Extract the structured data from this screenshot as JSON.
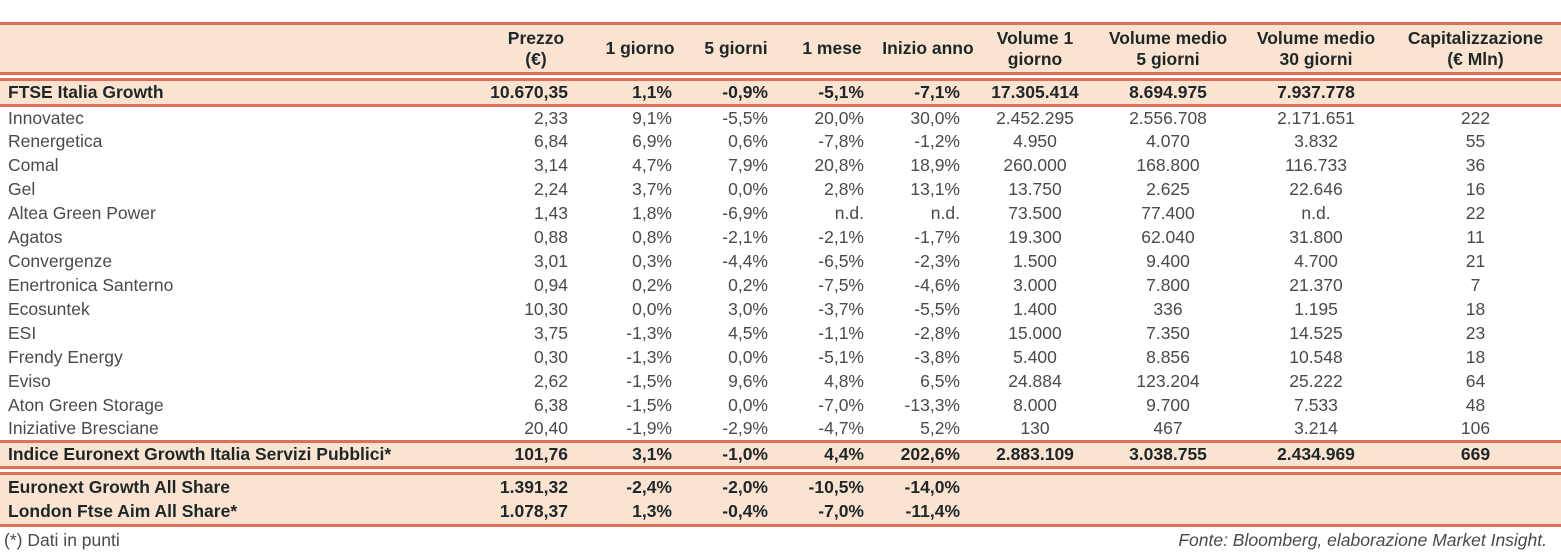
{
  "colors": {
    "band_background": "#fbe3d2",
    "rule_line": "#df7058",
    "band_text": "#1e2726",
    "body_text": "#4a4a49"
  },
  "table": {
    "columns": [
      {
        "key": "name",
        "label": "",
        "sub": ""
      },
      {
        "key": "prezzo",
        "label": "Prezzo",
        "sub": "(€)"
      },
      {
        "key": "giorno-1",
        "label": "1 giorno",
        "sub": ""
      },
      {
        "key": "giorni-5",
        "label": "5 giorni",
        "sub": ""
      },
      {
        "key": "mese-1",
        "label": "1 mese",
        "sub": ""
      },
      {
        "key": "inizio-anno",
        "label": "Inizio anno",
        "sub": ""
      },
      {
        "key": "volume-1-giorno",
        "label": "Volume 1",
        "sub": "giorno"
      },
      {
        "key": "volume-medio-5-giorni",
        "label": "Volume medio",
        "sub": "5 giorni"
      },
      {
        "key": "volume-medio-30-giorni",
        "label": "Volume medio",
        "sub": "30 giorni"
      },
      {
        "key": "capitalizzazione",
        "label": "Capitalizzazione",
        "sub": "(€ Mln)"
      }
    ],
    "rows": [
      {
        "style": "band",
        "name": "index-row-ftse-italia-growth",
        "cells": [
          "FTSE Italia Growth",
          "10.670,35",
          "1,1%",
          "-0,9%",
          "-5,1%",
          "-7,1%",
          "17.305.414",
          "8.694.975",
          "7.937.778",
          ""
        ]
      },
      {
        "style": "plain",
        "name": "stock-row-innovatec",
        "cells": [
          "Innovatec",
          "2,33",
          "9,1%",
          "-5,5%",
          "20,0%",
          "30,0%",
          "2.452.295",
          "2.556.708",
          "2.171.651",
          "222"
        ]
      },
      {
        "style": "plain",
        "name": "stock-row-renergetica",
        "cells": [
          "Renergetica",
          "6,84",
          "6,9%",
          "0,6%",
          "-7,8%",
          "-1,2%",
          "4.950",
          "4.070",
          "3.832",
          "55"
        ]
      },
      {
        "style": "plain",
        "name": "stock-row-comal",
        "cells": [
          "Comal",
          "3,14",
          "4,7%",
          "7,9%",
          "20,8%",
          "18,9%",
          "260.000",
          "168.800",
          "116.733",
          "36"
        ]
      },
      {
        "style": "plain",
        "name": "stock-row-gel",
        "cells": [
          "Gel",
          "2,24",
          "3,7%",
          "0,0%",
          "2,8%",
          "13,1%",
          "13.750",
          "2.625",
          "22.646",
          "16"
        ]
      },
      {
        "style": "plain",
        "name": "stock-row-altea-green-power",
        "cells": [
          "Altea Green Power",
          "1,43",
          "1,8%",
          "-6,9%",
          "n.d.",
          "n.d.",
          "73.500",
          "77.400",
          "n.d.",
          "22"
        ]
      },
      {
        "style": "plain",
        "name": "stock-row-agatos",
        "cells": [
          "Agatos",
          "0,88",
          "0,8%",
          "-2,1%",
          "-2,1%",
          "-1,7%",
          "19.300",
          "62.040",
          "31.800",
          "11"
        ]
      },
      {
        "style": "plain",
        "name": "stock-row-convergenze",
        "cells": [
          "Convergenze",
          "3,01",
          "0,3%",
          "-4,4%",
          "-6,5%",
          "-2,3%",
          "1.500",
          "9.400",
          "4.700",
          "21"
        ]
      },
      {
        "style": "plain",
        "name": "stock-row-enertronica-santerno",
        "cells": [
          "Enertronica Santerno",
          "0,94",
          "0,2%",
          "0,2%",
          "-7,5%",
          "-4,6%",
          "3.000",
          "7.800",
          "21.370",
          "7"
        ]
      },
      {
        "style": "plain",
        "name": "stock-row-ecosuntek",
        "cells": [
          "Ecosuntek",
          "10,30",
          "0,0%",
          "3,0%",
          "-3,7%",
          "-5,5%",
          "1.400",
          "336",
          "1.195",
          "18"
        ]
      },
      {
        "style": "plain",
        "name": "stock-row-esi",
        "cells": [
          "ESI",
          "3,75",
          "-1,3%",
          "4,5%",
          "-1,1%",
          "-2,8%",
          "15.000",
          "7.350",
          "14.525",
          "23"
        ]
      },
      {
        "style": "plain",
        "name": "stock-row-frendy-energy",
        "cells": [
          "Frendy Energy",
          "0,30",
          "-1,3%",
          "0,0%",
          "-5,1%",
          "-3,8%",
          "5.400",
          "8.856",
          "10.548",
          "18"
        ]
      },
      {
        "style": "plain",
        "name": "stock-row-eviso",
        "cells": [
          "Eviso",
          "2,62",
          "-1,5%",
          "9,6%",
          "4,8%",
          "6,5%",
          "24.884",
          "123.204",
          "25.222",
          "64"
        ]
      },
      {
        "style": "plain",
        "name": "stock-row-aton-green-storage",
        "cells": [
          "Aton Green Storage",
          "6,38",
          "-1,5%",
          "0,0%",
          "-7,0%",
          "-13,3%",
          "8.000",
          "9.700",
          "7.533",
          "48"
        ]
      },
      {
        "style": "plain",
        "name": "stock-row-iniziative-bresciane",
        "cells": [
          "Iniziative Bresciane",
          "20,40",
          "-1,9%",
          "-2,9%",
          "-4,7%",
          "5,2%",
          "130",
          "467",
          "3.214",
          "106"
        ]
      },
      {
        "style": "band",
        "name": "index-row-euronext-growth-italia-servizi-pubblici",
        "cells": [
          "Indice Euronext Growth Italia Servizi Pubblici*",
          "101,76",
          "3,1%",
          "-1,0%",
          "4,4%",
          "202,6%",
          "2.883.109",
          "3.038.755",
          "2.434.969",
          "669"
        ]
      },
      {
        "style": "band-top",
        "name": "index-row-euronext-growth-all-share",
        "cells": [
          "Euronext Growth All Share",
          "1.391,32",
          "-2,4%",
          "-2,0%",
          "-10,5%",
          "-14,0%",
          "",
          "",
          "",
          ""
        ]
      },
      {
        "style": "band-bottom",
        "name": "index-row-london-ftse-aim-all-share",
        "cells": [
          "London Ftse Aim All Share*",
          "1.078,37",
          "1,3%",
          "-0,4%",
          "-7,0%",
          "-11,4%",
          "",
          "",
          "",
          ""
        ]
      }
    ]
  },
  "footer": {
    "note": "(*) Dati in punti",
    "source": "Fonte: Bloomberg, elaborazione Market Insight."
  }
}
